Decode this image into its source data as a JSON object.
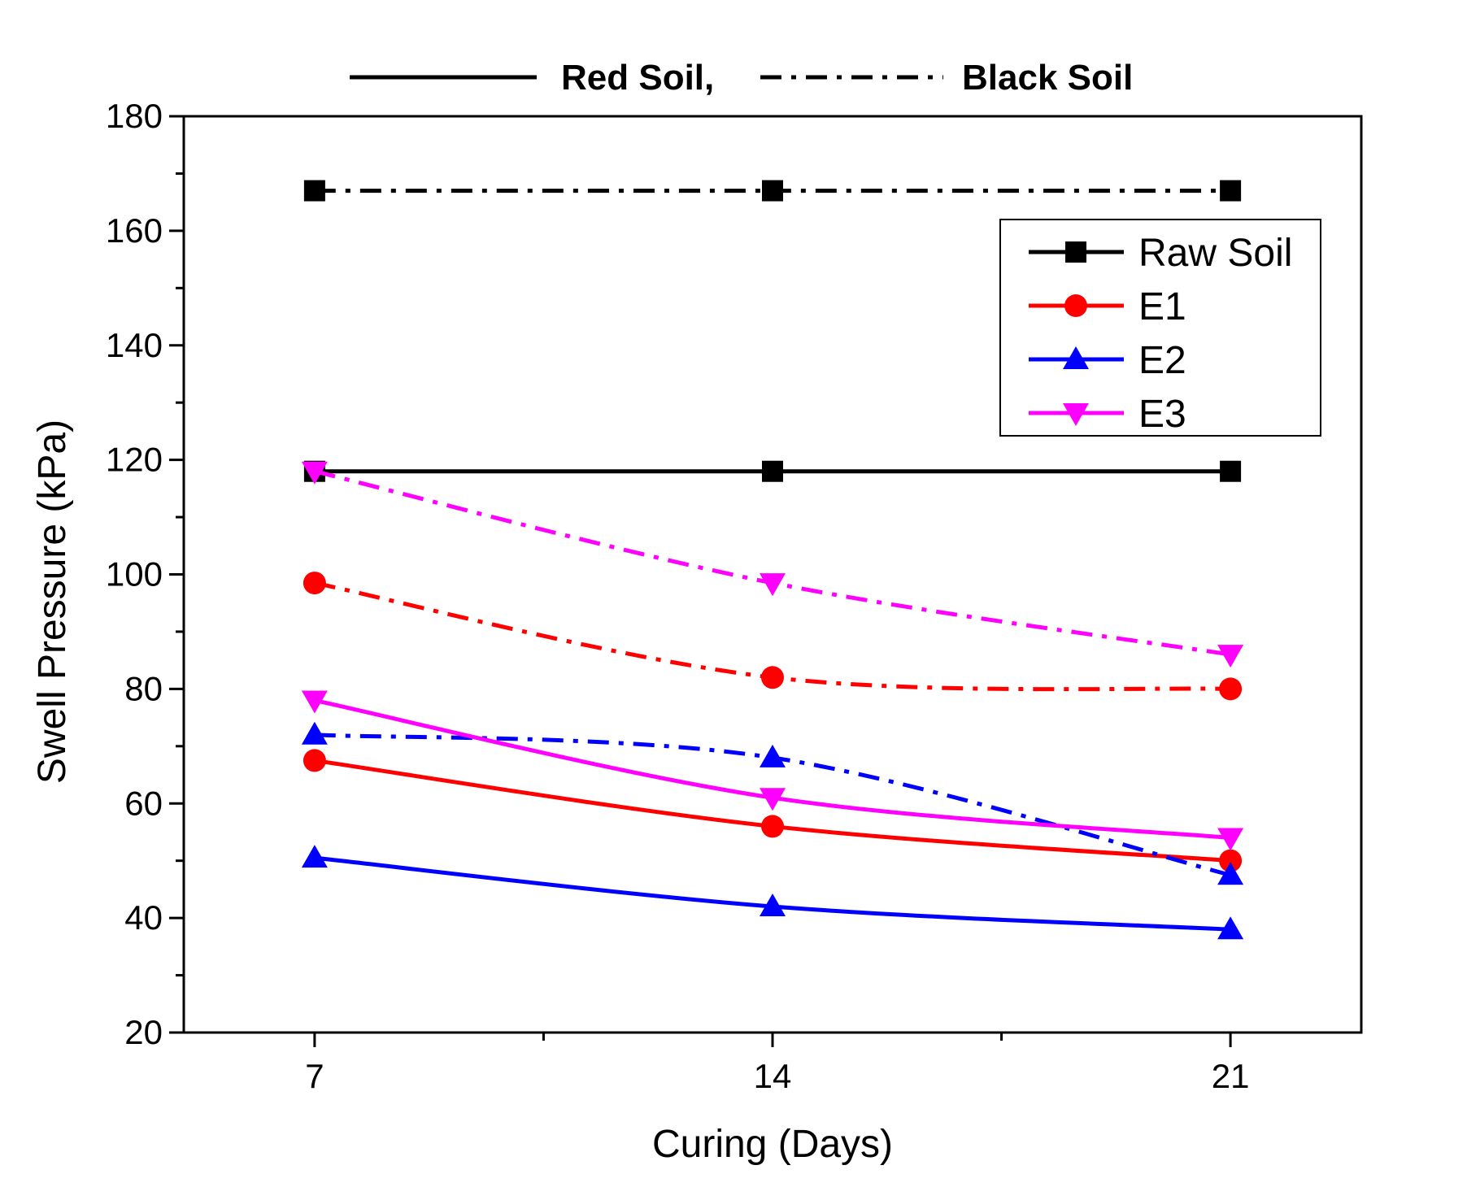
{
  "chart_data": {
    "type": "line",
    "title": "",
    "xlabel": "Curing (Days)",
    "ylabel": "Swell Pressure (kPa)",
    "x": [
      7,
      14,
      21
    ],
    "xticks": [
      "7",
      "14",
      "21"
    ],
    "xlim": [
      5,
      23
    ],
    "ylim": [
      20,
      180
    ],
    "yticks": [
      "20",
      "40",
      "60",
      "80",
      "100",
      "120",
      "140",
      "160",
      "180"
    ],
    "grid": false,
    "line_styles": [
      {
        "key": "red",
        "label": "Red Soil,",
        "dash": "solid"
      },
      {
        "key": "black",
        "label": "Black Soil",
        "dash": "dashdot"
      }
    ],
    "series": [
      {
        "name": "Raw Soil",
        "soil": "red",
        "marker": "square",
        "color": "#000000",
        "values": [
          118,
          118,
          118
        ]
      },
      {
        "name": "Raw Soil",
        "soil": "black",
        "marker": "square",
        "color": "#000000",
        "values": [
          167,
          167,
          167
        ]
      },
      {
        "name": "E1",
        "soil": "red",
        "marker": "circle",
        "color": "#ff0000",
        "values": [
          67.5,
          56,
          50
        ]
      },
      {
        "name": "E1",
        "soil": "black",
        "marker": "circle",
        "color": "#ff0000",
        "values": [
          98.5,
          82,
          80
        ]
      },
      {
        "name": "E2",
        "soil": "red",
        "marker": "triangle-up",
        "color": "#0000ff",
        "values": [
          50.5,
          42,
          38
        ]
      },
      {
        "name": "E2",
        "soil": "black",
        "marker": "triangle-up",
        "color": "#0000ff",
        "values": [
          72,
          68,
          47.5
        ]
      },
      {
        "name": "E3",
        "soil": "red",
        "marker": "triangle-down",
        "color": "#ff00ff",
        "values": [
          78,
          61,
          54
        ]
      },
      {
        "name": "E3",
        "soil": "black",
        "marker": "triangle-down",
        "color": "#ff00ff",
        "values": [
          118,
          98.5,
          86
        ]
      }
    ],
    "legend": {
      "placement": "top-right",
      "entries": [
        {
          "label": "Raw Soil",
          "marker": "square",
          "color": "#000000"
        },
        {
          "label": "E1",
          "marker": "circle",
          "color": "#ff0000"
        },
        {
          "label": "E2",
          "marker": "triangle-up",
          "color": "#0000ff"
        },
        {
          "label": "E3",
          "marker": "triangle-down",
          "color": "#ff00ff"
        }
      ]
    }
  }
}
